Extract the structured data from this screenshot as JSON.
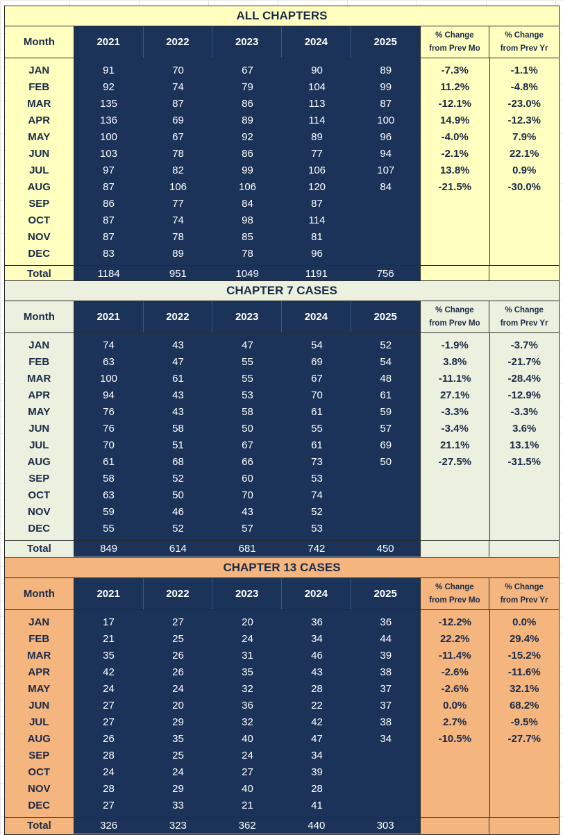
{
  "headers": {
    "month": "Month",
    "years": [
      "2021",
      "2022",
      "2023",
      "2024",
      "2025"
    ],
    "pct_prev_mo": [
      "% Change",
      "from Prev Mo"
    ],
    "pct_prev_yr": [
      "% Change",
      "from Prev Yr"
    ],
    "total": "Total"
  },
  "months": [
    "JAN",
    "FEB",
    "MAR",
    "APR",
    "MAY",
    "JUN",
    "JUL",
    "AUG",
    "SEP",
    "OCT",
    "NOV",
    "DEC"
  ],
  "sections": [
    {
      "title": "ALL CHAPTERS",
      "bg": "#ffffc0",
      "rows": [
        [
          "91",
          "70",
          "67",
          "90",
          "89",
          "-7.3%",
          "-1.1%"
        ],
        [
          "92",
          "74",
          "79",
          "104",
          "99",
          "11.2%",
          "-4.8%"
        ],
        [
          "135",
          "87",
          "86",
          "113",
          "87",
          "-12.1%",
          "-23.0%"
        ],
        [
          "136",
          "69",
          "89",
          "114",
          "100",
          "14.9%",
          "-12.3%"
        ],
        [
          "100",
          "67",
          "92",
          "89",
          "96",
          "-4.0%",
          "7.9%"
        ],
        [
          "103",
          "78",
          "86",
          "77",
          "94",
          "-2.1%",
          "22.1%"
        ],
        [
          "97",
          "82",
          "99",
          "106",
          "107",
          "13.8%",
          "0.9%"
        ],
        [
          "87",
          "106",
          "106",
          "120",
          "84",
          "-21.5%",
          "-30.0%"
        ],
        [
          "86",
          "77",
          "84",
          "87",
          "",
          "",
          ""
        ],
        [
          "87",
          "74",
          "98",
          "114",
          "",
          "",
          ""
        ],
        [
          "87",
          "78",
          "85",
          "81",
          "",
          "",
          ""
        ],
        [
          "83",
          "89",
          "78",
          "96",
          "",
          "",
          ""
        ]
      ],
      "totals": [
        "1184",
        "951",
        "1049",
        "1191",
        "756"
      ]
    },
    {
      "title": "CHAPTER 7 CASES",
      "bg": "#ebf1de",
      "rows": [
        [
          "74",
          "43",
          "47",
          "54",
          "52",
          "-1.9%",
          "-3.7%"
        ],
        [
          "63",
          "47",
          "55",
          "69",
          "54",
          "3.8%",
          "-21.7%"
        ],
        [
          "100",
          "61",
          "55",
          "67",
          "48",
          "-11.1%",
          "-28.4%"
        ],
        [
          "94",
          "43",
          "53",
          "70",
          "61",
          "27.1%",
          "-12.9%"
        ],
        [
          "76",
          "43",
          "58",
          "61",
          "59",
          "-3.3%",
          "-3.3%"
        ],
        [
          "76",
          "58",
          "50",
          "55",
          "57",
          "-3.4%",
          "3.6%"
        ],
        [
          "70",
          "51",
          "67",
          "61",
          "69",
          "21.1%",
          "13.1%"
        ],
        [
          "61",
          "68",
          "66",
          "73",
          "50",
          "-27.5%",
          "-31.5%"
        ],
        [
          "58",
          "52",
          "60",
          "53",
          "",
          "",
          ""
        ],
        [
          "63",
          "50",
          "70",
          "74",
          "",
          "",
          ""
        ],
        [
          "59",
          "46",
          "43",
          "52",
          "",
          "",
          ""
        ],
        [
          "55",
          "52",
          "57",
          "53",
          "",
          "",
          ""
        ]
      ],
      "totals": [
        "849",
        "614",
        "681",
        "742",
        "450"
      ]
    },
    {
      "title": "CHAPTER 13 CASES",
      "bg": "#f4b57f",
      "rows": [
        [
          "17",
          "27",
          "20",
          "36",
          "36",
          "-12.2%",
          "0.0%"
        ],
        [
          "21",
          "25",
          "24",
          "34",
          "44",
          "22.2%",
          "29.4%"
        ],
        [
          "35",
          "26",
          "31",
          "46",
          "39",
          "-11.4%",
          "-15.2%"
        ],
        [
          "42",
          "26",
          "35",
          "43",
          "38",
          "-2.6%",
          "-11.6%"
        ],
        [
          "24",
          "24",
          "32",
          "28",
          "37",
          "-2.6%",
          "32.1%"
        ],
        [
          "27",
          "20",
          "36",
          "22",
          "37",
          "0.0%",
          "68.2%"
        ],
        [
          "27",
          "29",
          "32",
          "42",
          "38",
          "2.7%",
          "-9.5%"
        ],
        [
          "26",
          "35",
          "40",
          "47",
          "34",
          "-10.5%",
          "-27.7%"
        ],
        [
          "28",
          "25",
          "24",
          "34",
          "",
          "",
          ""
        ],
        [
          "24",
          "24",
          "27",
          "39",
          "",
          "",
          ""
        ],
        [
          "28",
          "29",
          "40",
          "28",
          "",
          "",
          ""
        ],
        [
          "27",
          "33",
          "21",
          "41",
          "",
          "",
          ""
        ]
      ],
      "totals": [
        "326",
        "323",
        "362",
        "440",
        "303"
      ]
    }
  ]
}
